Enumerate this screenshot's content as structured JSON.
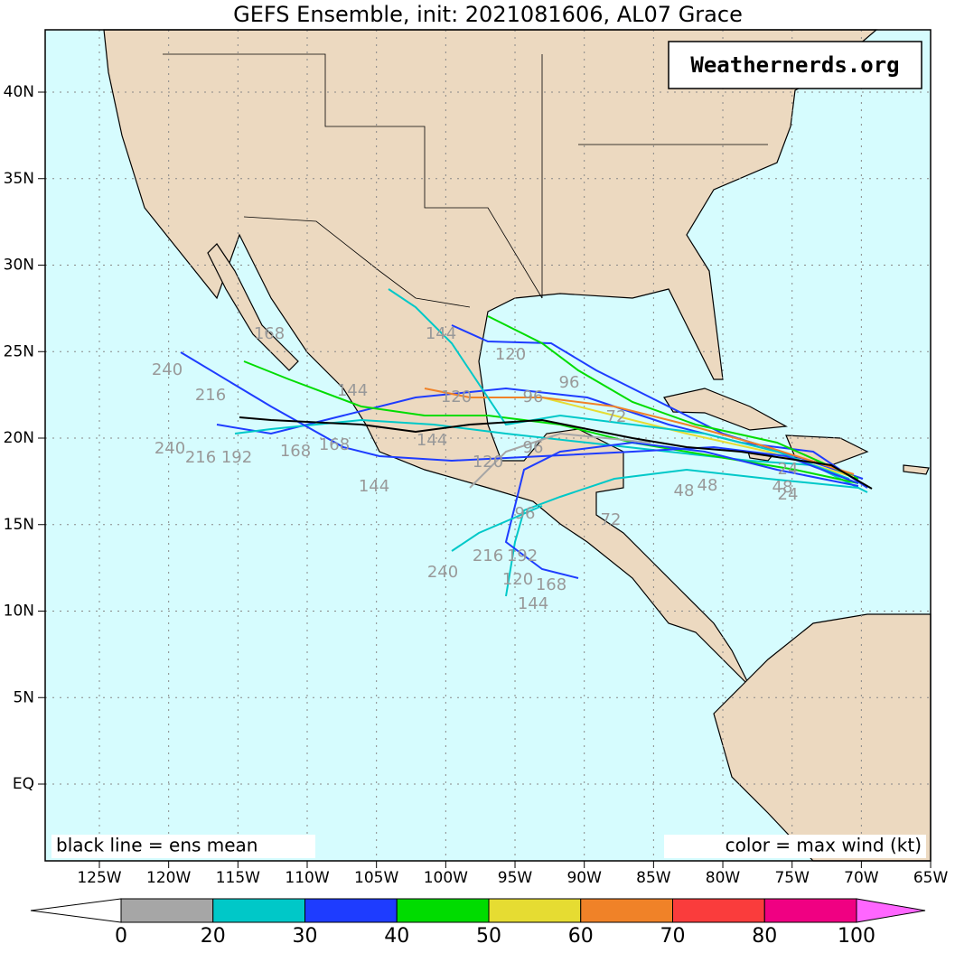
{
  "title": "GEFS Ensemble, init: 2021081606, AL07 Grace",
  "watermark": "Weathernerds.org",
  "legend_left": "black line = ens mean",
  "legend_right": "color = max wind (kt)",
  "lon_ticks": [
    "125W",
    "120W",
    "115W",
    "110W",
    "105W",
    "100W",
    "95W",
    "90W",
    "85W",
    "80W",
    "75W",
    "70W",
    "65W"
  ],
  "lat_ticks": [
    "40N",
    "35N",
    "30N",
    "25N",
    "20N",
    "15N",
    "10N",
    "5N",
    "EQ"
  ],
  "colorbar": {
    "ticks": [
      0,
      20,
      30,
      40,
      50,
      60,
      70,
      80,
      100
    ],
    "colors": [
      "#ffffff",
      "#a6a6a6",
      "#00c8c8",
      "#1e3cff",
      "#00dc00",
      "#e6dc32",
      "#f08228",
      "#fa3c3c",
      "#f00082",
      "#ff66ff"
    ]
  },
  "track_labels": [
    "144",
    "120",
    "96",
    "168",
    "240",
    "216",
    "144",
    "120",
    "96",
    "72",
    "240",
    "216",
    "192",
    "168",
    "168",
    "144",
    "144",
    "120",
    "96",
    "48",
    "48",
    "48",
    "24",
    "24",
    "72",
    "96",
    "240",
    "216",
    "192",
    "120",
    "168",
    "144"
  ]
}
